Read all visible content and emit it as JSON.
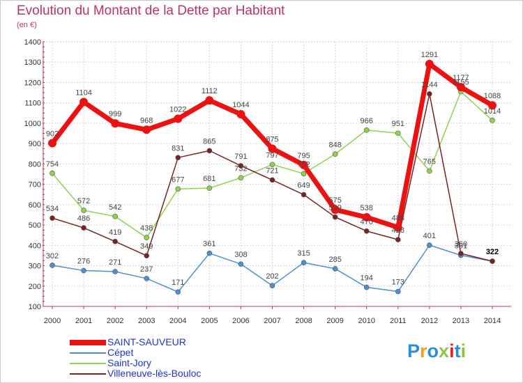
{
  "title": "Evolution du Montant de la Dette par Habitant",
  "subtitle": "(en €)",
  "logo": {
    "text": "Proxiti",
    "letter_colors": [
      "#2a8fd6",
      "#f0a020",
      "#2a8fd6",
      "#8cc63f",
      "#e62020",
      "#2a8fd6",
      "#8cc63f"
    ]
  },
  "chart_data": {
    "type": "line",
    "title": "Evolution du Montant de la Dette par Habitant",
    "subtitle": "(en €)",
    "xlabel": "",
    "ylabel": "",
    "ylim": [
      100,
      1400
    ],
    "yticks": [
      100,
      200,
      300,
      400,
      500,
      600,
      700,
      800,
      900,
      1000,
      1100,
      1200,
      1300,
      1400
    ],
    "grid": true,
    "legend_position": "bottom-left",
    "categories": [
      "2000",
      "2001",
      "2002",
      "2003",
      "2004",
      "2005",
      "2006",
      "2007",
      "2008",
      "2009",
      "2010",
      "2011",
      "2012",
      "2013",
      "2014"
    ],
    "series": [
      {
        "name": "SAINT-SAUVEUR",
        "color": "#ee1111",
        "values": [
          902,
          1104,
          999,
          968,
          1022,
          1112,
          1044,
          875,
          795,
          575,
          538,
          488,
          1291,
          1177,
          1088
        ]
      },
      {
        "name": "Cépet",
        "color": "#4f8fcc",
        "values": [
          302,
          276,
          271,
          237,
          171,
          361,
          308,
          202,
          315,
          285,
          194,
          173,
          401,
          351,
          322
        ]
      },
      {
        "name": "Saint-Jory",
        "color": "#8fd34a",
        "values": [
          754,
          572,
          542,
          438,
          677,
          681,
          732,
          797,
          752,
          848,
          966,
          951,
          765,
          1155,
          1014
        ]
      },
      {
        "name": "Villeneuve-lès-Bouloc",
        "color": "#7a2222",
        "values": [
          534,
          486,
          419,
          349,
          831,
          865,
          791,
          721,
          649,
          539,
          470,
          428,
          1144,
          360,
          322
        ]
      }
    ]
  }
}
